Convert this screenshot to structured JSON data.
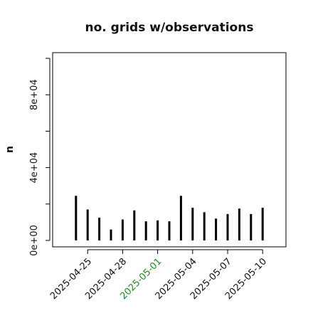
{
  "chart_data": {
    "type": "bar",
    "title": "no. grids w/observations",
    "xlabel": "",
    "ylabel": "n",
    "x": [
      "2025-04-24",
      "2025-04-25",
      "2025-04-26",
      "2025-04-27",
      "2025-04-28",
      "2025-04-29",
      "2025-04-30",
      "2025-05-01",
      "2025-05-02",
      "2025-05-03",
      "2025-05-04",
      "2025-05-05",
      "2025-05-06",
      "2025-05-07",
      "2025-05-08",
      "2025-05-09",
      "2025-05-10"
    ],
    "values": [
      24500,
      17000,
      12500,
      6000,
      11500,
      16500,
      10500,
      11000,
      10500,
      24500,
      18000,
      15500,
      12000,
      14500,
      17500,
      14500,
      18000
    ],
    "ylim": [
      0,
      100000
    ],
    "xlim": [
      "2025-04-22",
      "2025-05-12"
    ],
    "yticks": [
      {
        "value": 0,
        "label": "0e+00"
      },
      {
        "value": 40000,
        "label": "4e+04"
      },
      {
        "value": 80000,
        "label": "8e+04"
      }
    ],
    "yminor": [
      20000,
      60000,
      100000
    ],
    "xticks": [
      {
        "date": "2025-04-25",
        "label": "2025-04-25",
        "highlight": false
      },
      {
        "date": "2025-04-28",
        "label": "2025-04-28",
        "highlight": false
      },
      {
        "date": "2025-05-01",
        "label": "2025-05-01",
        "highlight": true
      },
      {
        "date": "2025-05-04",
        "label": "2025-05-04",
        "highlight": false
      },
      {
        "date": "2025-05-07",
        "label": "2025-05-07",
        "highlight": false
      },
      {
        "date": "2025-05-10",
        "label": "2025-05-10",
        "highlight": false
      }
    ],
    "grid": false,
    "legend": "none",
    "colors": {
      "bar": "#000000",
      "tick_label": "#111111",
      "tick_label_highlight": "#1f8a1f"
    }
  }
}
